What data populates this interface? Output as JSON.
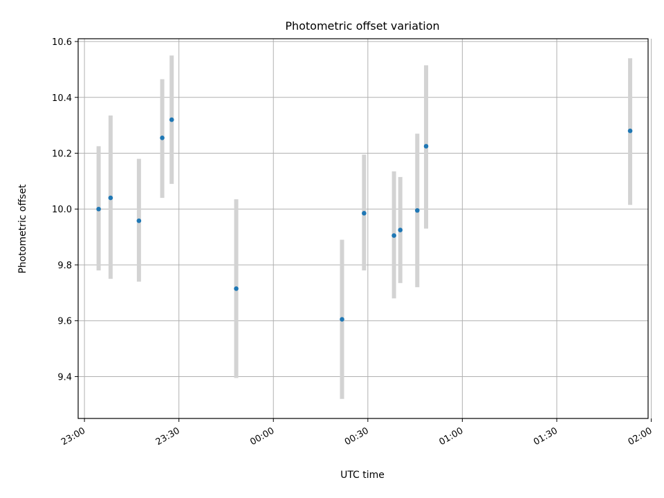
{
  "chart_data": {
    "type": "scatter",
    "title": "Photometric offset variation",
    "xlabel": "UTC time",
    "ylabel": "Photometric offset",
    "x_unit": "minutes since 23:00 UTC",
    "xlim": [
      -2,
      179
    ],
    "ylim": [
      9.25,
      10.61
    ],
    "xticks": [
      {
        "value": 0,
        "label": "23:00"
      },
      {
        "value": 30,
        "label": "23:30"
      },
      {
        "value": 60,
        "label": "00:00"
      },
      {
        "value": 90,
        "label": "00:30"
      },
      {
        "value": 120,
        "label": "01:00"
      },
      {
        "value": 150,
        "label": "01:30"
      },
      {
        "value": 180,
        "label": "02:00"
      }
    ],
    "yticks": [
      9.4,
      9.6,
      9.8,
      10.0,
      10.2,
      10.4,
      10.6
    ],
    "grid": true,
    "colors": {
      "point": "#1f77b4",
      "errorbar": "#d3d3d3"
    },
    "points": [
      {
        "time": "23:04:30",
        "t": 4.5,
        "y": 10.0,
        "err_low": 9.78,
        "err_high": 10.225
      },
      {
        "time": "23:08:20",
        "t": 8.3,
        "y": 10.04,
        "err_low": 9.75,
        "err_high": 10.335
      },
      {
        "time": "23:17:20",
        "t": 17.3,
        "y": 9.958,
        "err_low": 9.74,
        "err_high": 10.18
      },
      {
        "time": "23:24:40",
        "t": 24.7,
        "y": 10.255,
        "err_low": 10.04,
        "err_high": 10.465
      },
      {
        "time": "23:27:40",
        "t": 27.7,
        "y": 10.32,
        "err_low": 10.09,
        "err_high": 10.55
      },
      {
        "time": "23:48:10",
        "t": 48.2,
        "y": 9.715,
        "err_low": 9.395,
        "err_high": 10.035
      },
      {
        "time": "00:21:50",
        "t": 81.8,
        "y": 9.605,
        "err_low": 9.32,
        "err_high": 9.89
      },
      {
        "time": "00:28:50",
        "t": 88.8,
        "y": 9.985,
        "err_low": 9.78,
        "err_high": 10.195
      },
      {
        "time": "00:38:20",
        "t": 98.3,
        "y": 9.905,
        "err_low": 9.68,
        "err_high": 10.135
      },
      {
        "time": "00:40:20",
        "t": 100.3,
        "y": 9.925,
        "err_low": 9.735,
        "err_high": 10.115
      },
      {
        "time": "00:45:40",
        "t": 105.7,
        "y": 9.995,
        "err_low": 9.72,
        "err_high": 10.27
      },
      {
        "time": "00:48:30",
        "t": 108.5,
        "y": 10.225,
        "err_low": 9.93,
        "err_high": 10.515
      },
      {
        "time": "01:53:20",
        "t": 173.3,
        "y": 10.28,
        "err_low": 10.015,
        "err_high": 10.54
      }
    ]
  }
}
